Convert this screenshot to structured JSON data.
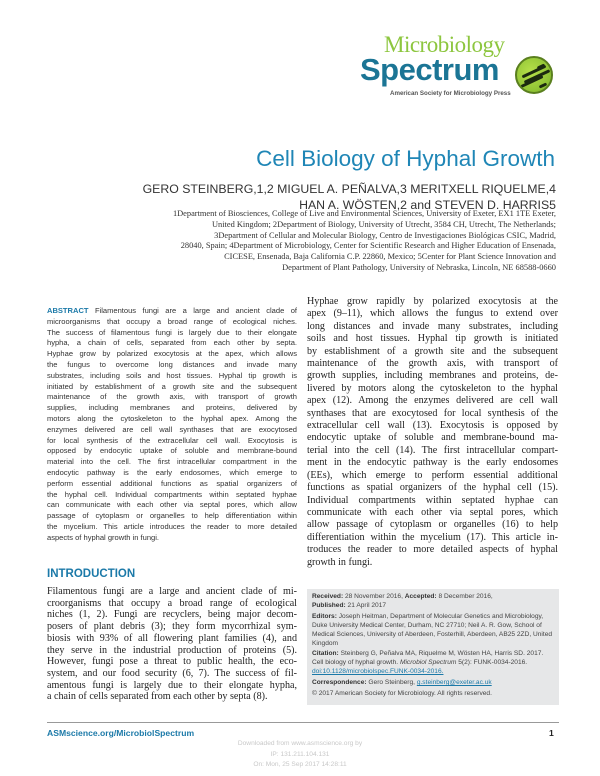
{
  "logo": {
    "line1": "Microbiology",
    "line2": "Spectrum",
    "tagline": "American Society for Microbiology Press",
    "colors": {
      "green": "#8dc63f",
      "teal": "#1b7595"
    }
  },
  "article": {
    "title": "Cell Biology of Hyphal Growth",
    "authors_line1": "GERO STEINBERG,1,2 MIGUEL A. PEÑALVA,3 MERITXELL RIQUELME,4",
    "authors_line2": "HAN A. WÖSTEN,2 and STEVEN D. HARRIS5",
    "affiliations": [
      "1Department of Biosciences, College of Live and Environmental Sciences, University of Exeter, EX1 1TE Exeter,",
      "United Kingdom; 2Department of Biology, University of Utrecht, 3584 CH, Utrecht, The Netherlands;",
      "3Department of Cellular and Molecular Biology, Centro de Investigaciones Biológicas CSIC, Madrid,",
      "28040, Spain; 4Department of Microbiology, Center for Scientific Research and Higher Education of Ensenada,",
      "CICESE, Ensenada, Baja California C.P. 22860, Mexico; 5Center for Plant Science Innovation and",
      "Department of Plant Pathology, University of Nebraska, Lincoln, NE 68588-0660"
    ]
  },
  "abstract": {
    "keyword": "ABSTRACT",
    "lines": [
      " Filamentous fungi are a large and ancient clade of",
      "microorganisms that occupy a broad range of ecological niches.",
      "The success of filamentous fungi is largely due to their elongate",
      "hypha, a chain of cells, separated from each other by septa.",
      "Hyphae grow by polarized exocytosis at the apex, which allows",
      "the fungus to overcome long distances and invade many",
      "substrates, including soils and host tissues. Hyphal tip growth is",
      "initiated by establishment of a growth site and the subsequent",
      "maintenance of the growth axis, with transport of growth",
      "supplies, including membranes and proteins, delivered by",
      "motors along the cytoskeleton to the hyphal apex. Among the",
      "enzymes delivered are cell wall synthases that are exocytosed",
      "for local synthesis of the extracellular cell wall. Exocytosis is",
      "opposed by endocytic uptake of soluble and membrane-bound",
      "material into the cell. The first intracellular compartment in the",
      "endocytic pathway is the early endosomes, which emerge to",
      "perform essential additional functions as spatial organizers of",
      "the hyphal cell. Individual compartments within septated hyphae",
      "can communicate with each other via septal pores, which allow",
      "passage of cytoplasm or organelles to help differentiation within",
      "the mycelium. This article introduces the reader to more detailed",
      "aspects of hyphal growth in fungi."
    ]
  },
  "introduction": {
    "heading": "INTRODUCTION",
    "lines": [
      "Filamentous fungi are a large and ancient clade of mi-",
      "croorganisms that occupy a broad range of ecological",
      "niches (1, 2). Fungi are recyclers, being major decom-",
      "posers of plant debris (3); they form mycorrhizal sym-",
      "biosis with 93% of all flowering plant families (4), and",
      "they serve in the industrial production of proteins (5).",
      "However, fungi pose a threat to public health, the eco-",
      "system, and our food security (6, 7). The success of fil-",
      "amentous fungi is largely due to their elongate hypha,",
      "a chain of cells separated from each other by septa (8)."
    ],
    "right_lines": [
      "Hyphae grow rapidly by polarized exocytosis at the",
      "apex (9–11), which allows the fungus to extend over",
      "long distances and invade many substrates, including",
      "soils and host tissues. Hyphal tip growth is initiated",
      "by establishment of a growth site and the subsequent",
      "maintenance of the growth axis, with transport of",
      "growth supplies, including membranes and proteins, de-",
      "livered by motors along the cytoskeleton to the hyphal",
      "apex (12). Among the enzymes delivered are cell wall",
      "synthases that are exocytosed for local synthesis of the",
      "extracellular cell wall (13). Exocytosis is opposed by",
      "endocytic uptake of soluble and membrane-bound ma-",
      "terial into the cell (14). The first intracellular compart-",
      "ment in the endocytic pathway is the early endosomes",
      "(EEs), which emerge to perform essential additional",
      "functions as spatial organizers of the hyphal cell (15).",
      "Individual compartments within septated hyphae can",
      "communicate with each other via septal pores, which",
      "allow passage of cytoplasm or organelles (16) to help",
      "differentiation within the mycelium (17). This article in-",
      "troduces the reader to more detailed aspects of hyphal",
      "growth in fungi."
    ]
  },
  "info_box": {
    "received_label": "Received:",
    "received": " 28 November 2016, ",
    "accepted_label": "Accepted:",
    "accepted": " 8 December 2016,",
    "published_label": "Published:",
    "published": " 21 April 2017",
    "editors_label": "Editors:",
    "editors": " Joseph Heitman, Department of Molecular Genetics and Microbiology, Duke University Medical Center, Durham, NC 27710; Neil A. R. Gow, School of Medical Sciences, University of Aberdeen, Fosterhill, Aberdeen, AB25 2ZD, United Kingdom",
    "citation_label": "Citation:",
    "citation_pre": " Steinberg G, Peñalva MA, Riquelme M, Wösten HA, Harris SD. 2017. Cell biology of hyphal growth. ",
    "citation_journal": "Microbiol Spectrum",
    "citation_post": " 5(2): FUNK-0034-2016. ",
    "doi": "doi:10.1128/microbiolspec.FUNK-0034-2016.",
    "correspondence_label": "Correspondence:",
    "correspondence": " Gero Steinberg, ",
    "email": "g.steinberg@exeter.ac.uk",
    "copyright": "© 2017 American Society for Microbiology. All rights reserved."
  },
  "footer": {
    "site": "ASMscience.org/MicrobiolSpectrum",
    "page": "1",
    "watermark": [
      "Downloaded from www.asmscience.org by",
      "IP:  131.211.104.131",
      "On: Mon, 25 Sep 2017 14:28:11"
    ]
  },
  "colors": {
    "accent": "#1b79a8",
    "title": "#1f86b6",
    "box": "#e6e7e8"
  }
}
